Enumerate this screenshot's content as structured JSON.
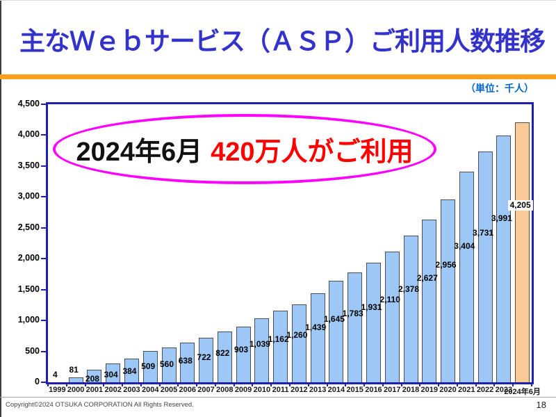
{
  "slide": {
    "title": "主なＷｅｂサービス（ＡＳＰ）ご利用人数推移",
    "unit_label": "（単位：千人）",
    "copyright": "Copyright©2024 OTSUKA CORPORATION All Rights Reserved.",
    "page_number": "18"
  },
  "annotation": {
    "date_text": "2024年6月",
    "highlight_text": "420万人がご利用"
  },
  "colors": {
    "title_blue": "#3333CC",
    "unit_blue": "#0066CC",
    "accent_orange": "#F9A01B",
    "frame_navy": "#2020B0",
    "bar_blue": "#9CC7F6",
    "bar_orange": "#FACB96",
    "bar_border": "#4D4D4D",
    "ellipse_magenta": "#FF00FF",
    "highlight_red": "#FF0000"
  },
  "chart_data": {
    "type": "bar",
    "title": "主なＷｅｂサービス（ＡＳＰ）ご利用人数推移",
    "unit": "千人",
    "categories": [
      "1999",
      "2000",
      "2001",
      "2002",
      "2003",
      "2004",
      "2005",
      "2006",
      "2007",
      "2008",
      "2009",
      "2010",
      "2011",
      "2012",
      "2013",
      "2014",
      "2015",
      "2016",
      "2017",
      "2018",
      "2019",
      "2020",
      "2021",
      "2022",
      "2023",
      "2024年6月"
    ],
    "values": [
      4,
      81,
      208,
      304,
      384,
      509,
      560,
      638,
      722,
      822,
      903,
      1039,
      1162,
      1260,
      1439,
      1645,
      1783,
      1931,
      2110,
      2378,
      2627,
      2956,
      3404,
      3731,
      3991,
      4205
    ],
    "value_labels": [
      "4",
      "81",
      "208",
      "304",
      "384",
      "509",
      "560",
      "638",
      "722",
      "822",
      "903",
      "1,039",
      "1,162",
      "1,260",
      "1,439",
      "1,645",
      "1,783",
      "1,931",
      "2,110",
      "2,378",
      "2,627",
      "2,956",
      "3,404",
      "3,731",
      "3,991",
      "4,205"
    ],
    "xlabel": "",
    "ylabel": "",
    "ylim": [
      0,
      4500
    ],
    "ytick_step": 500,
    "ytick_labels": [
      "0",
      "500",
      "1,000",
      "1,500",
      "2,000",
      "2,500",
      "3,000",
      "3,500",
      "4,000",
      "4,500"
    ],
    "grid": false,
    "legend": false,
    "highlight_last_bar": true
  }
}
